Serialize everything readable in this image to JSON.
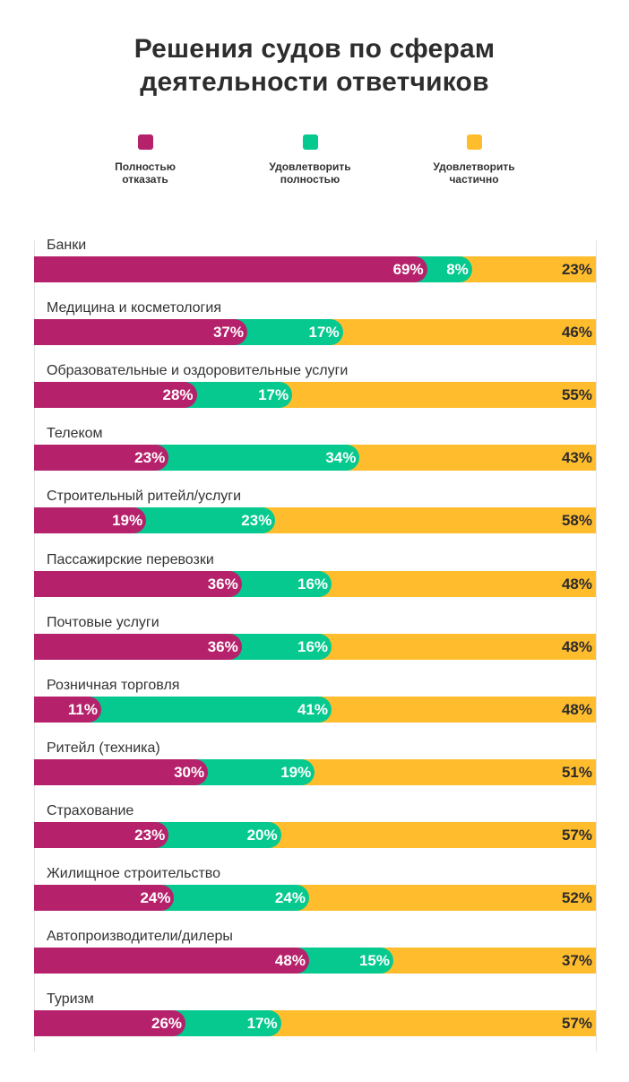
{
  "title_lines": [
    "Решения судов по сферам",
    "деятельности ответчиков"
  ],
  "legend": [
    {
      "label": "Полностью\nотказать",
      "color": "#b5226b"
    },
    {
      "label": "Удовлетворить\nполностью",
      "color": "#05c98e"
    },
    {
      "label": "Удовлетворить\nчастично",
      "color": "#ffbd2e"
    }
  ],
  "chart_data": {
    "type": "bar",
    "orientation": "horizontal",
    "stacked": true,
    "title": "Решения судов по сферам деятельности ответчиков",
    "categories": [
      "Банки",
      "Медицина и косметология",
      "Образовательные и оздоровительные услуги",
      "Телеком",
      "Строительный ритейл/услуги",
      "Пассажирские перевозки",
      "Почтовые услуги",
      "Розничная торговля",
      "Ритейл (техника)",
      "Страхование",
      "Жилищное строительство",
      "Автопроизводители/дилеры",
      "Туризм"
    ],
    "series": [
      {
        "name": "Полностью отказать",
        "color": "#b5226b",
        "values": [
          69,
          37,
          28,
          23,
          19,
          36,
          36,
          11,
          30,
          23,
          24,
          48,
          26
        ]
      },
      {
        "name": "Удовлетворить полностью",
        "color": "#05c98e",
        "values": [
          8,
          17,
          17,
          34,
          23,
          16,
          16,
          41,
          19,
          20,
          24,
          15,
          17
        ]
      },
      {
        "name": "Удовлетворить частично",
        "color": "#ffbd2e",
        "values": [
          23,
          46,
          55,
          43,
          58,
          48,
          48,
          48,
          51,
          57,
          52,
          37,
          57
        ]
      }
    ],
    "unit": "%",
    "xlim": [
      0,
      100
    ]
  }
}
